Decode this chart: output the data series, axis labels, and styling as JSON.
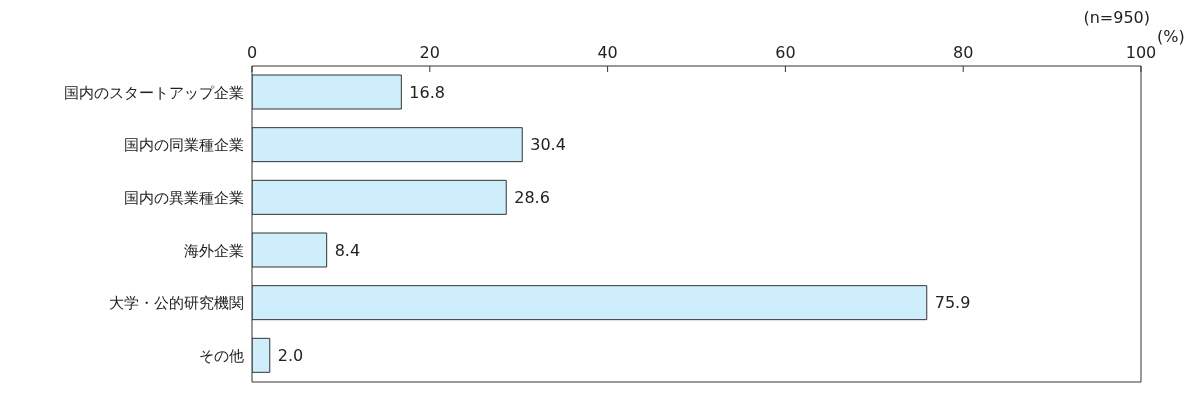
{
  "chart_data": {
    "type": "bar",
    "orientation": "horizontal",
    "categories": [
      "国内のスタートアップ企業",
      "国内の同業種企業",
      "国内の異業種企業",
      "海外企業",
      "大学・公的研究機関",
      "その他"
    ],
    "values": [
      16.8,
      30.4,
      28.6,
      8.4,
      75.9,
      2.0
    ],
    "value_labels": [
      "16.8",
      "30.4",
      "28.6",
      "8.4",
      "75.9",
      "2.0"
    ],
    "color": "#cdeefa",
    "xlim": [
      0,
      100
    ],
    "xticks": [
      0,
      20,
      40,
      60,
      80,
      100
    ],
    "xlabel": "(%)",
    "annotations": [
      "(n=950)"
    ]
  }
}
